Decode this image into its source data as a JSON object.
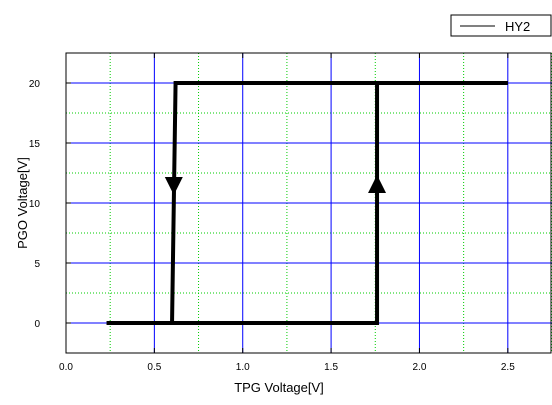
{
  "chart_data": {
    "type": "line",
    "xlabel": "TPG Voltage[V]",
    "ylabel": "PGO Voltage[V]",
    "xlim": [
      0.0,
      2.75
    ],
    "ylim": [
      -2.5,
      22.5
    ],
    "x_ticks": [
      0.0,
      0.5,
      1.0,
      1.5,
      2.0,
      2.5
    ],
    "x_tick_labels": [
      "0.0",
      "0.5",
      "1.0",
      "1.5",
      "2.0",
      "2.5"
    ],
    "y_ticks": [
      0,
      5,
      10,
      15,
      20
    ],
    "y_tick_labels": [
      "0",
      "5",
      "10",
      "15",
      "20"
    ],
    "grid": true,
    "legend_position": "top-right, outside plot",
    "series": [
      {
        "name": "HY2",
        "color": "#000000",
        "rising_path": {
          "x": [
            0.23,
            1.76,
            1.76,
            2.5
          ],
          "y": [
            0,
            0,
            20,
            20
          ]
        },
        "falling_path": {
          "x": [
            2.5,
            0.62,
            0.6,
            0.23
          ],
          "y": [
            20,
            20,
            0,
            0
          ]
        },
        "arrows": [
          {
            "direction": "down",
            "x": 0.61,
            "y": 11.5
          },
          {
            "direction": "up",
            "x": 1.76,
            "y": 11.5
          }
        ]
      }
    ]
  },
  "colors": {
    "major_grid": "#0000ff",
    "minor_grid": "#00cc00",
    "axis": "#000000",
    "data_line": "#000000"
  }
}
